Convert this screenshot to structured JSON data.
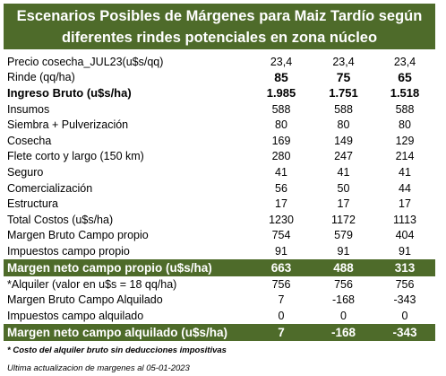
{
  "title": {
    "line1": "Escenarios  Posibles de Márgenes para Maiz Tardío según",
    "line2": "diferentes rindes potenciales en zona núcleo"
  },
  "rows": [
    {
      "label": "Precio cosecha_JUL23(u$s/qq)",
      "v": [
        "23,4",
        "23,4",
        "23,4"
      ],
      "style": "price"
    },
    {
      "label": "Rinde (qq/ha)",
      "v": [
        "85",
        "75",
        "65"
      ],
      "style": "rinde"
    },
    {
      "label": "Ingreso Bruto (u$s/ha)",
      "v": [
        "1.985",
        "1.751",
        "1.518"
      ],
      "style": "bold"
    },
    {
      "label": "Insumos",
      "v": [
        "588",
        "588",
        "588"
      ],
      "style": "normal"
    },
    {
      "label": "Siembra + Pulverización",
      "v": [
        "80",
        "80",
        "80"
      ],
      "style": "normal"
    },
    {
      "label": "Cosecha",
      "v": [
        "169",
        "149",
        "129"
      ],
      "style": "normal"
    },
    {
      "label": "Flete corto y largo (150 km)",
      "v": [
        "280",
        "247",
        "214"
      ],
      "style": "normal"
    },
    {
      "label": "Seguro",
      "v": [
        "41",
        "41",
        "41"
      ],
      "style": "normal"
    },
    {
      "label": "Comercialización",
      "v": [
        "56",
        "50",
        "44"
      ],
      "style": "normal"
    },
    {
      "label": "Estructura",
      "v": [
        "17",
        "17",
        "17"
      ],
      "style": "normal"
    },
    {
      "label": "Total Costos (u$s/ha)",
      "v": [
        "1230",
        "1172",
        "1113"
      ],
      "style": "normal"
    },
    {
      "label": "Margen Bruto Campo propio",
      "v": [
        "754",
        "579",
        "404"
      ],
      "style": "normal"
    },
    {
      "label": "Impuestos  campo propio",
      "v": [
        "91",
        "91",
        "91"
      ],
      "style": "normal"
    },
    {
      "label": "Margen neto campo propio (u$s/ha)",
      "v": [
        "663",
        "488",
        "313"
      ],
      "style": "hl"
    },
    {
      "label": "*Alquiler (valor en u$s = 18 qq/ha)",
      "v": [
        "756",
        "756",
        "756"
      ],
      "style": "normal"
    },
    {
      "label": "Margen Bruto Campo Alquilado",
      "v": [
        "7",
        "-168",
        "-343"
      ],
      "style": "normal"
    },
    {
      "label": "Impuestos campo alquilado",
      "v": [
        "0",
        "0",
        "0"
      ],
      "style": "normal"
    },
    {
      "label": "Margen neto campo alquilado (u$s/ha)",
      "v": [
        "7",
        "-168",
        "-343"
      ],
      "style": "hl"
    }
  ],
  "footnote1": "* Costo del alquiler bruto sin deducciones impositivas",
  "footnote2": "Ultima actualizacion de margenes al 05-01-2023",
  "colors": {
    "accent": "#4e6b2a",
    "accent_text": "#ffffff"
  }
}
